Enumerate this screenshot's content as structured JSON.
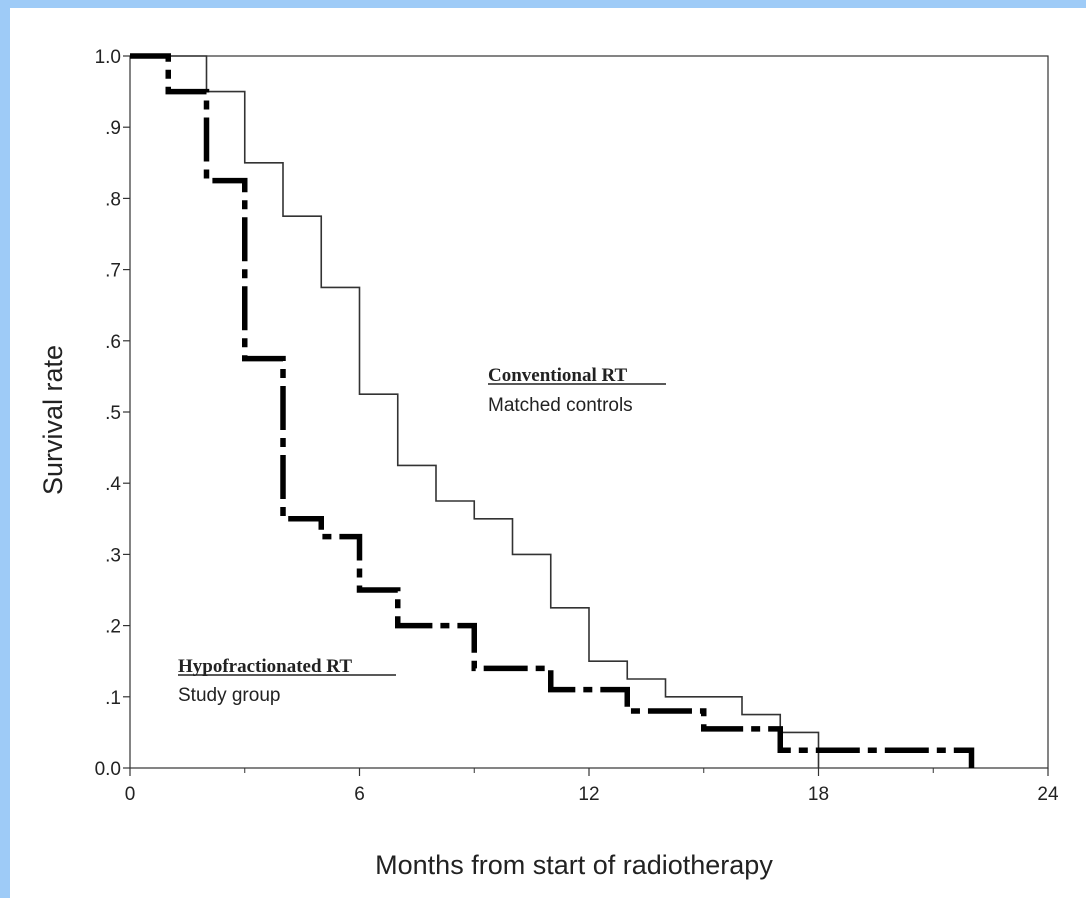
{
  "chart_data": {
    "type": "line",
    "step": true,
    "xlabel": "Months from start of radiotherapy",
    "ylabel": "Survival rate",
    "xlim": [
      0,
      24
    ],
    "ylim": [
      0,
      1
    ],
    "x_ticks": [
      0,
      6,
      12,
      18,
      24
    ],
    "x_tick_labels": [
      "0",
      "6",
      "12",
      "18",
      "24"
    ],
    "x_minor_ticks": [
      3,
      9,
      15,
      21
    ],
    "y_ticks": [
      0,
      0.1,
      0.2,
      0.3,
      0.4,
      0.5,
      0.6,
      0.7,
      0.8,
      0.9,
      1.0
    ],
    "y_tick_labels": [
      "0.0",
      ".1",
      ".2",
      ".3",
      ".4",
      ".5",
      ".6",
      ".7",
      ".8",
      ".9",
      "1.0"
    ],
    "grid": false,
    "series": [
      {
        "name": "Conventional RT",
        "subtitle": "Matched controls",
        "style": "thin-solid",
        "color": "#333333",
        "x": [
          0,
          2,
          3,
          4,
          5,
          6,
          7,
          8,
          9,
          10,
          11,
          12,
          13,
          14,
          16,
          17,
          18
        ],
        "y": [
          1.0,
          0.95,
          0.85,
          0.775,
          0.675,
          0.525,
          0.425,
          0.375,
          0.35,
          0.3,
          0.225,
          0.15,
          0.125,
          0.1,
          0.075,
          0.05,
          0.0
        ]
      },
      {
        "name": "Hypofractionated RT",
        "subtitle": "Study group",
        "style": "thick-dash-dot",
        "color": "#000000",
        "x": [
          0,
          1,
          2,
          3,
          4,
          5,
          6,
          7,
          9,
          11,
          13,
          15,
          17,
          22
        ],
        "y": [
          1.0,
          0.95,
          0.825,
          0.575,
          0.35,
          0.325,
          0.25,
          0.2,
          0.14,
          0.11,
          0.08,
          0.055,
          0.025,
          0.0
        ]
      }
    ]
  }
}
